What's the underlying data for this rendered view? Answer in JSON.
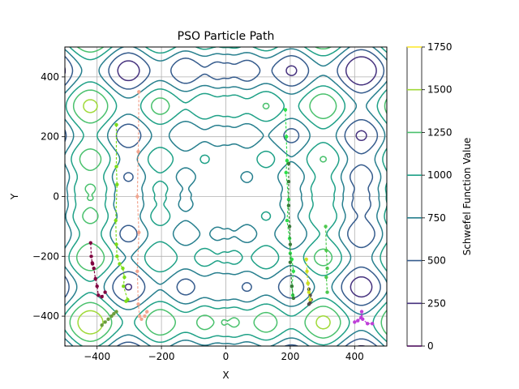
{
  "chart_data": {
    "type": "contour",
    "title": "PSO Particle Path",
    "xlabel": "X",
    "ylabel": "Y",
    "xlim": [
      -500,
      500
    ],
    "ylim": [
      -500,
      500
    ],
    "x_ticks": [
      -400,
      -200,
      0,
      200,
      400
    ],
    "y_ticks": [
      -400,
      -200,
      0,
      200,
      400
    ],
    "grid": true,
    "function": "schwefel",
    "colorbar": {
      "label": "Schwefel Function Value",
      "levels": [
        0,
        250,
        500,
        750,
        1000,
        1250,
        1500,
        1750
      ],
      "tick_labels": [
        "0",
        "250",
        "500",
        "750",
        "1000",
        "1250",
        "1500",
        "1750"
      ],
      "colors": [
        "#440154",
        "#46327e",
        "#365c8d",
        "#277f8e",
        "#1fa187",
        "#4ac16d",
        "#a0da39",
        "#fde725"
      ]
    },
    "particle_paths": [
      {
        "color": "#800040",
        "points": [
          [
            -420,
            -155
          ],
          [
            -418,
            -200
          ],
          [
            -415,
            -222
          ],
          [
            -414,
            -225
          ],
          [
            -410,
            -240
          ],
          [
            -405,
            -275
          ],
          [
            -400,
            -300
          ],
          [
            -396,
            -330
          ],
          [
            -385,
            -335
          ],
          [
            -375,
            -320
          ]
        ]
      },
      {
        "color": "#6b9e3c",
        "points": [
          [
            -385,
            -430
          ],
          [
            -375,
            -420
          ],
          [
            -365,
            -410
          ],
          [
            -355,
            -400
          ],
          [
            -348,
            -392
          ],
          [
            -340,
            -385
          ]
        ]
      },
      {
        "color": "#7cdd1a",
        "points": [
          [
            -340,
            240
          ],
          [
            -340,
            100
          ],
          [
            -338,
            40
          ],
          [
            -342,
            -80
          ],
          [
            -340,
            -160
          ],
          [
            -338,
            -200
          ],
          [
            -330,
            -225
          ],
          [
            -320,
            -240
          ],
          [
            -315,
            -270
          ],
          [
            -318,
            -300
          ],
          [
            -305,
            -345
          ],
          [
            -310,
            -350
          ]
        ]
      },
      {
        "color": "#f2a58f",
        "points": [
          [
            -270,
            350
          ],
          [
            -272,
            150
          ],
          [
            -275,
            0
          ],
          [
            -270,
            -120
          ],
          [
            -275,
            -250
          ],
          [
            -272,
            -360
          ],
          [
            -268,
            -400
          ],
          [
            -262,
            -410
          ],
          [
            -252,
            -400
          ],
          [
            -245,
            -385
          ]
        ]
      },
      {
        "color": "#2cdf4a",
        "points": [
          [
            185,
            290
          ],
          [
            188,
            200
          ],
          [
            190,
            120
          ],
          [
            187,
            80
          ],
          [
            195,
            -10
          ],
          [
            190,
            -80
          ],
          [
            198,
            -140
          ],
          [
            200,
            -190
          ],
          [
            205,
            -210
          ],
          [
            210,
            -250
          ],
          [
            205,
            -300
          ],
          [
            208,
            -330
          ]
        ]
      },
      {
        "color": "#3a7a3a",
        "points": [
          [
            195,
            110
          ],
          [
            195,
            50
          ],
          [
            195,
            -30
          ],
          [
            198,
            -100
          ],
          [
            200,
            -160
          ],
          [
            200,
            -220
          ],
          [
            205,
            -300
          ],
          [
            210,
            -340
          ]
        ]
      },
      {
        "color": "#4d4d4d",
        "points": [
          [
            255,
            -290
          ],
          [
            258,
            -310
          ],
          [
            262,
            -330
          ],
          [
            265,
            -345
          ],
          [
            262,
            -355
          ],
          [
            258,
            -360
          ]
        ]
      },
      {
        "color": "#cde01e",
        "points": [
          [
            250,
            -210
          ],
          [
            252,
            -250
          ],
          [
            255,
            -290
          ],
          [
            258,
            -320
          ],
          [
            262,
            -345
          ]
        ]
      },
      {
        "color": "#4ec94e",
        "points": [
          [
            310,
            -100
          ],
          [
            312,
            -180
          ],
          [
            315,
            -240
          ],
          [
            312,
            -270
          ],
          [
            315,
            -320
          ]
        ]
      },
      {
        "color": "#bf3fd9",
        "points": [
          [
            400,
            -420
          ],
          [
            410,
            -415
          ],
          [
            420,
            -405
          ],
          [
            422,
            -385
          ],
          [
            425,
            -410
          ],
          [
            440,
            -425
          ],
          [
            455,
            -425
          ]
        ]
      }
    ]
  }
}
